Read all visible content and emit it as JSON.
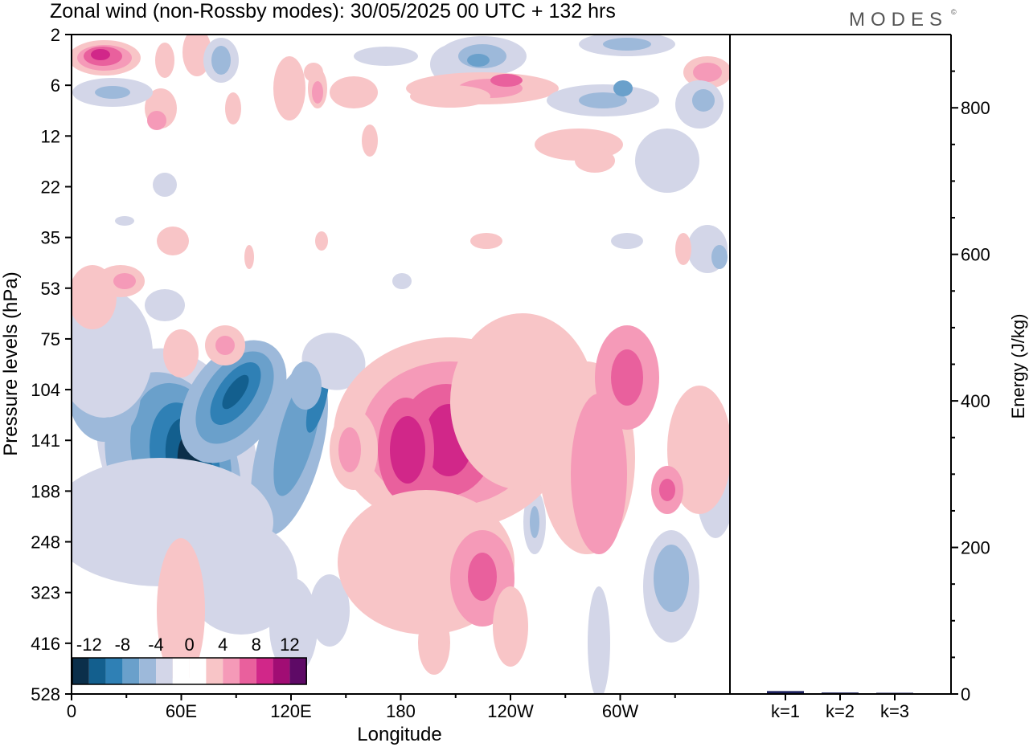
{
  "title": "Zonal wind (non-Rossby modes):  30/05/2025  00 UTC  + 132 hrs",
  "brand": "MODES",
  "brand_mark": "©",
  "chart_data": [
    {
      "type": "heatmap",
      "title": "Zonal wind (non-Rossby modes):  30/05/2025  00 UTC  + 132 hrs",
      "xlabel": "Longitude",
      "ylabel": "Pressure levels (hPa)",
      "x_ticks": [
        "0",
        "60E",
        "120E",
        "180",
        "120W",
        "60W"
      ],
      "x_tick_values": [
        0,
        60,
        120,
        180,
        240,
        300
      ],
      "xlim": [
        0,
        360
      ],
      "y_ticks": [
        "2",
        "6",
        "12",
        "22",
        "35",
        "53",
        "75",
        "104",
        "141",
        "188",
        "248",
        "323",
        "416",
        "528"
      ],
      "y_axis": "pressure levels, top to bottom",
      "colorbar": {
        "labels": [
          "-12",
          "-8",
          "-4",
          "0",
          "4",
          "8",
          "12"
        ],
        "levels": [
          -14,
          -12,
          -10,
          -8,
          -6,
          -4,
          -2,
          0,
          2,
          4,
          6,
          8,
          10,
          12,
          14
        ],
        "colors": [
          "#0b2f4a",
          "#135f8e",
          "#2f80b5",
          "#6aa0cb",
          "#9db9da",
          "#d3d6e8",
          "#ffffff",
          "#ffffff",
          "#f8c5c7",
          "#f59ab8",
          "#e9609d",
          "#d12789",
          "#a10d74",
          "#5e0a66"
        ]
      },
      "features": [
        {
          "kind": "negative",
          "lon": 35,
          "level": "141",
          "peak": -14
        },
        {
          "kind": "negative",
          "lon": 45,
          "level": "104",
          "peak": -10
        },
        {
          "kind": "negative",
          "lon": 65,
          "level": "141",
          "peak": -8
        },
        {
          "kind": "positive",
          "lon": 205,
          "level": "141",
          "peak": 10
        },
        {
          "kind": "positive",
          "lon": 190,
          "level": "141",
          "peak": 8
        },
        {
          "kind": "positive",
          "lon": 240,
          "level": "188",
          "peak": 6
        },
        {
          "kind": "negative",
          "lon": 330,
          "level": "323",
          "peak": -6
        },
        {
          "kind": "positive",
          "lon": 15,
          "level": "2",
          "peak": 10
        }
      ]
    },
    {
      "type": "bar",
      "title": "",
      "categories": [
        "k=1",
        "k=2",
        "k=3"
      ],
      "values": [
        4,
        2,
        1
      ],
      "ylabel": "Energy (J/kg)",
      "ylim": [
        0,
        900
      ],
      "y_ticks": [
        0,
        200,
        400,
        600,
        800
      ],
      "bar_color": "#1b1f5c"
    }
  ]
}
